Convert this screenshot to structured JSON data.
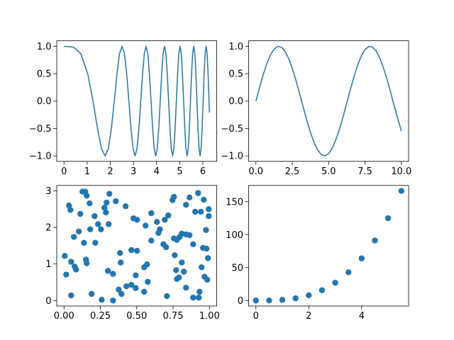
{
  "chart_data": [
    {
      "type": "line",
      "color": "#1f77b4",
      "x": [
        0,
        0.4,
        0.7236,
        1.0233,
        1.2533,
        1.4472,
        1.618,
        1.7725,
        1.9145,
        2.0467,
        2.1708,
        2.2882,
        2.3999,
        2.5066,
        2.609,
        2.7075,
        2.8025,
        2.8944,
        2.9835,
        3.07,
        3.1541,
        3.2361,
        3.316,
        3.394,
        3.4703,
        3.5449,
        3.618,
        3.6897,
        3.7599,
        3.8289,
        3.8967,
        3.9633,
        4.0288,
        4.0933,
        4.1568,
        4.2193,
        4.2809,
        4.3416,
        4.4015,
        4.4606,
        4.5189,
        4.5765,
        4.6333,
        4.6895,
        4.745,
        4.7998,
        4.8541,
        4.9077,
        4.9608,
        5.0133,
        5.0652,
        5.1166,
        5.1675,
        5.218,
        5.2679,
        5.3174,
        5.3664,
        5.415,
        5.4631,
        5.5108,
        5.5581,
        5.605,
        5.6515,
        5.6977,
        5.7434,
        5.7888,
        5.8338,
        5.8786,
        5.9229,
        5.967,
        6.0107,
        6.0541,
        6.0972,
        6.14,
        6.1825,
        6.2247,
        6.2666,
        6.2832
      ],
      "values": [
        1,
        0.987,
        0.866,
        0.5,
        0,
        -0.5,
        -0.866,
        -1,
        -0.866,
        -0.5,
        0,
        0.5,
        0.866,
        1,
        0.866,
        0.5,
        0,
        -0.5,
        -0.866,
        -1,
        -0.866,
        -0.5,
        0,
        0.5,
        0.866,
        1,
        0.866,
        0.5,
        0,
        -0.5,
        -0.866,
        -1,
        -0.866,
        -0.5,
        0,
        0.5,
        0.866,
        1,
        0.866,
        0.5,
        0,
        -0.5,
        -0.866,
        -1,
        -0.866,
        -0.5,
        0,
        0.5,
        0.866,
        1,
        0.866,
        0.5,
        0,
        -0.5,
        -0.866,
        -1,
        -0.866,
        -0.5,
        0,
        0.5,
        0.866,
        1,
        0.866,
        0.5,
        0,
        -0.5,
        -0.866,
        -1,
        -0.866,
        -0.5,
        0,
        0.5,
        0.866,
        1,
        0.866,
        0.5,
        0,
        -0.207
      ],
      "xlim": [
        -0.314,
        6.597
      ],
      "ylim": [
        -1.1,
        1.1
      ],
      "xticks": [
        0,
        1,
        2,
        3,
        4,
        5,
        6
      ],
      "yticks": [
        {
          "value": -1,
          "label": "−1.0"
        },
        {
          "value": -0.5,
          "label": "−0.5"
        },
        {
          "value": 0,
          "label": "0.0"
        },
        0.5,
        {
          "value": 1,
          "label": "1.0"
        }
      ]
    },
    {
      "type": "line",
      "color": "#1f77b4",
      "x": [
        0,
        0.25,
        0.5,
        0.75,
        1,
        1.25,
        1.5,
        1.75,
        2,
        2.25,
        2.5,
        2.75,
        3,
        3.25,
        3.5,
        3.75,
        4,
        4.25,
        4.5,
        4.75,
        5,
        5.25,
        5.5,
        5.75,
        6,
        6.25,
        6.5,
        6.75,
        7,
        7.25,
        7.5,
        7.75,
        8,
        8.25,
        8.5,
        8.75,
        9,
        9.25,
        9.5,
        9.75,
        10
      ],
      "values": [
        0,
        0.247,
        0.479,
        0.682,
        0.841,
        0.949,
        0.997,
        0.984,
        0.909,
        0.778,
        0.598,
        0.382,
        0.141,
        -0.108,
        -0.351,
        -0.572,
        -0.757,
        -0.895,
        -0.978,
        -0.999,
        -0.959,
        -0.859,
        -0.706,
        -0.51,
        -0.279,
        -0.033,
        0.215,
        0.451,
        0.657,
        0.823,
        0.938,
        0.995,
        0.989,
        0.923,
        0.798,
        0.624,
        0.412,
        0.174,
        -0.075,
        -0.319,
        -0.544
      ],
      "xlim": [
        -0.5,
        10.5
      ],
      "ylim": [
        -1.1,
        1.1
      ],
      "xticks": [
        {
          "value": 0,
          "label": "0.0"
        },
        2.5,
        {
          "value": 5,
          "label": "5.0"
        },
        7.5,
        {
          "value": 10,
          "label": "10.0"
        }
      ],
      "yticks": [
        {
          "value": -1,
          "label": "−1.0"
        },
        {
          "value": -0.5,
          "label": "−0.5"
        },
        {
          "value": 0,
          "label": "0.0"
        },
        0.5,
        {
          "value": 1,
          "label": "1.0"
        }
      ]
    },
    {
      "type": "scatter",
      "color": "#1f77b4",
      "x": [
        0.127,
        0.146,
        0.156,
        0.312,
        0.356,
        0.293,
        0.278,
        0.034,
        0.044,
        0.176,
        0.424,
        0.112,
        0.21,
        0.288,
        0.6,
        0.756,
        0.746,
        0.863,
        0.922,
        0.961,
        0.995,
        0.902,
        0.941,
        0.478,
        0.502,
        0.717,
        0.693,
        0.639,
        0.561,
        0.307,
        0.234,
        0.18,
        0.659,
        0.649,
        0.102,
        0.068,
        0.254,
        0.976,
        0.81,
        0.839,
        0.795,
        0.756,
        0.863,
        0.776,
        0.888,
        0.6,
        0.683,
        0.702,
        0.137,
        0.215,
        0.956,
        0.98,
        0.463,
        0.502,
        0.385,
        0.005,
        0.151,
        0.156,
        0.049,
        0.073,
        0.083,
        0.39,
        0.761,
        0.81,
        0.946,
        0.99,
        0.551,
        0.571,
        0.302,
        0.337,
        0.771,
        0.824,
        0.015,
        0.493,
        0.79,
        0.966,
        0.776,
        0.985,
        0.576,
        0.463,
        0.429,
        0.493,
        0.376,
        0.839,
        0.551,
        0.932,
        0.395,
        0.049,
        0.19,
        0.707,
        0.927,
        0.888,
        0.259,
        0.337,
        0.839,
        0.995
      ],
      "values": [
        2.98,
        2.98,
        2.87,
        2.92,
        2.72,
        2.68,
        2.54,
        2.6,
        2.48,
        2.66,
        2.58,
        2.37,
        2.31,
        2.41,
        2.39,
        2.84,
        2.75,
        2.82,
        2.94,
        2.76,
        2.5,
        2.43,
        2.43,
        2.25,
        2.21,
        2.33,
        2.21,
        2.15,
        2.05,
        2.09,
        2.09,
        1.95,
        1.95,
        1.85,
        1.89,
        1.74,
        1.95,
        1.93,
        1.83,
        1.81,
        1.74,
        1.7,
        1.79,
        1.66,
        1.54,
        1.64,
        1.54,
        1.46,
        1.58,
        1.58,
        1.44,
        1.42,
        1.38,
        1.36,
        1.3,
        1.22,
        1.12,
        1.02,
        1.06,
        0.93,
        0.85,
        1.04,
        1.24,
        1.04,
        0.91,
        1.16,
        0.91,
        0.99,
        0.81,
        0.73,
        0.83,
        0.79,
        0.71,
        0.69,
        0.63,
        0.65,
        0.59,
        0.57,
        0.51,
        0.43,
        0.39,
        0.34,
        0.3,
        0.35,
        0.24,
        0.24,
        0.18,
        0.14,
        0.18,
        0.12,
        0.08,
        0.08,
        0.02,
        0,
        2.62,
        2.31
      ],
      "xlim": [
        -0.05,
        1.05
      ],
      "ylim": [
        -0.15,
        3.15
      ],
      "xticks": [
        {
          "value": 0,
          "label": "0.00"
        },
        {
          "value": 0.25,
          "label": "0.25"
        },
        {
          "value": 0.5,
          "label": "0.50"
        },
        {
          "value": 0.75,
          "label": "0.75"
        },
        {
          "value": 1,
          "label": "1.00"
        }
      ],
      "yticks": [
        0,
        1,
        2,
        3
      ]
    },
    {
      "type": "scatter",
      "color": "#1f77b4",
      "x": [
        0,
        0.5,
        1,
        1.5,
        2,
        2.5,
        3,
        3.5,
        4,
        4.5,
        5,
        5.5
      ],
      "values": [
        0,
        0.125,
        1,
        3.375,
        8,
        15.625,
        27,
        42.875,
        64,
        91.125,
        125,
        166.375
      ],
      "xlim": [
        -0.275,
        5.775
      ],
      "ylim": [
        -8.3,
        174.7
      ],
      "xticks": [
        0,
        2,
        4
      ],
      "yticks": [
        0,
        50,
        100,
        150
      ]
    }
  ]
}
